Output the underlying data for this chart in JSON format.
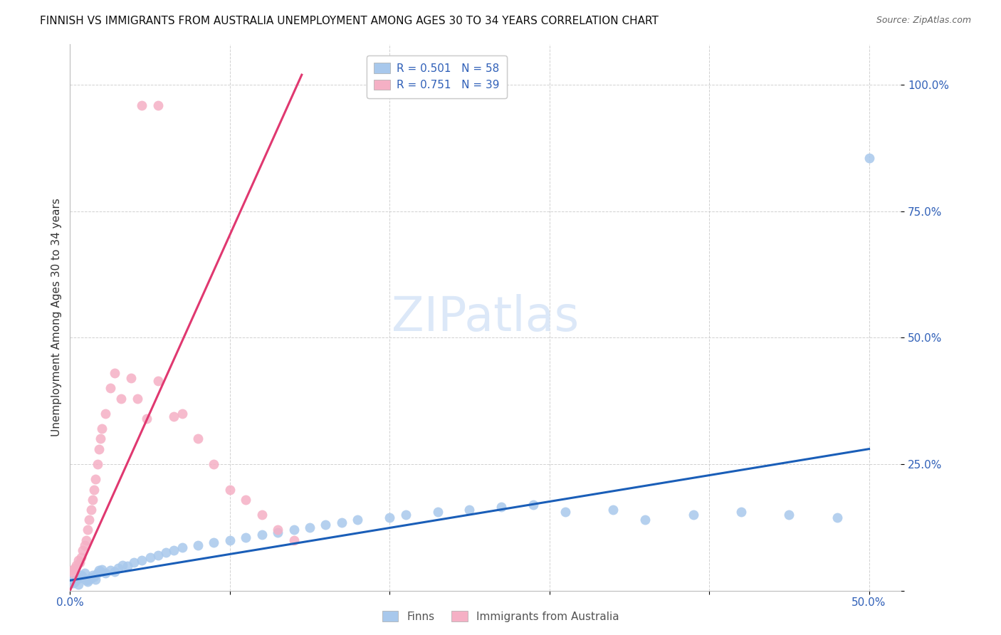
{
  "title": "FINNISH VS IMMIGRANTS FROM AUSTRALIA UNEMPLOYMENT AMONG AGES 30 TO 34 YEARS CORRELATION CHART",
  "source": "Source: ZipAtlas.com",
  "ylabel": "Unemployment Among Ages 30 to 34 years",
  "xlim": [
    0.0,
    0.52
  ],
  "ylim": [
    0.0,
    1.08
  ],
  "finns_color": "#a8c8ec",
  "immigrants_color": "#f5b0c5",
  "finns_line_color": "#1a5eb8",
  "immigrants_line_color": "#e03870",
  "watermark_color": "#dce8f8",
  "watermark_text": "ZIPatlas",
  "title_fontsize": 11,
  "source_fontsize": 9,
  "tick_fontsize": 11,
  "ylabel_fontsize": 11,
  "legend_fontsize": 11,
  "R_finns": "0.501",
  "N_finns": "58",
  "R_immigrants": "0.751",
  "N_immigrants": "39",
  "finns_x": [
    0.001,
    0.002,
    0.003,
    0.004,
    0.005,
    0.006,
    0.007,
    0.008,
    0.009,
    0.01,
    0.011,
    0.012,
    0.013,
    0.014,
    0.015,
    0.016,
    0.017,
    0.018,
    0.019,
    0.02,
    0.022,
    0.025,
    0.028,
    0.03,
    0.033,
    0.036,
    0.04,
    0.045,
    0.05,
    0.055,
    0.06,
    0.065,
    0.07,
    0.08,
    0.09,
    0.1,
    0.11,
    0.12,
    0.13,
    0.14,
    0.15,
    0.16,
    0.17,
    0.18,
    0.2,
    0.21,
    0.23,
    0.25,
    0.27,
    0.29,
    0.31,
    0.34,
    0.36,
    0.39,
    0.42,
    0.45,
    0.48,
    0.5
  ],
  "finns_y": [
    0.02,
    0.015,
    0.018,
    0.022,
    0.012,
    0.025,
    0.03,
    0.028,
    0.035,
    0.02,
    0.018,
    0.022,
    0.025,
    0.03,
    0.028,
    0.022,
    0.035,
    0.04,
    0.038,
    0.042,
    0.035,
    0.04,
    0.038,
    0.045,
    0.05,
    0.048,
    0.055,
    0.06,
    0.065,
    0.07,
    0.075,
    0.08,
    0.085,
    0.09,
    0.095,
    0.1,
    0.105,
    0.11,
    0.115,
    0.12,
    0.125,
    0.13,
    0.135,
    0.14,
    0.145,
    0.15,
    0.155,
    0.16,
    0.165,
    0.17,
    0.155,
    0.16,
    0.14,
    0.15,
    0.155,
    0.15,
    0.145,
    0.855
  ],
  "immigrants_x": [
    0.001,
    0.002,
    0.003,
    0.004,
    0.005,
    0.006,
    0.007,
    0.008,
    0.009,
    0.01,
    0.011,
    0.012,
    0.013,
    0.014,
    0.015,
    0.016,
    0.017,
    0.018,
    0.019,
    0.02,
    0.022,
    0.025,
    0.028,
    0.032,
    0.038,
    0.042,
    0.048,
    0.055,
    0.065,
    0.07,
    0.08,
    0.09,
    0.1,
    0.11,
    0.12,
    0.13,
    0.14,
    0.045,
    0.055
  ],
  "immigrants_y": [
    0.04,
    0.035,
    0.045,
    0.05,
    0.06,
    0.055,
    0.065,
    0.08,
    0.09,
    0.1,
    0.12,
    0.14,
    0.16,
    0.18,
    0.2,
    0.22,
    0.25,
    0.28,
    0.3,
    0.32,
    0.35,
    0.4,
    0.43,
    0.38,
    0.42,
    0.38,
    0.34,
    0.415,
    0.345,
    0.35,
    0.3,
    0.25,
    0.2,
    0.18,
    0.15,
    0.12,
    0.1,
    0.96,
    0.96
  ],
  "finns_trend": [
    0.02,
    0.28
  ],
  "finns_trend_x": [
    0.0,
    0.5
  ],
  "immigrants_trend_x": [
    0.0,
    0.145
  ],
  "immigrants_trend_y": [
    0.0,
    1.02
  ]
}
